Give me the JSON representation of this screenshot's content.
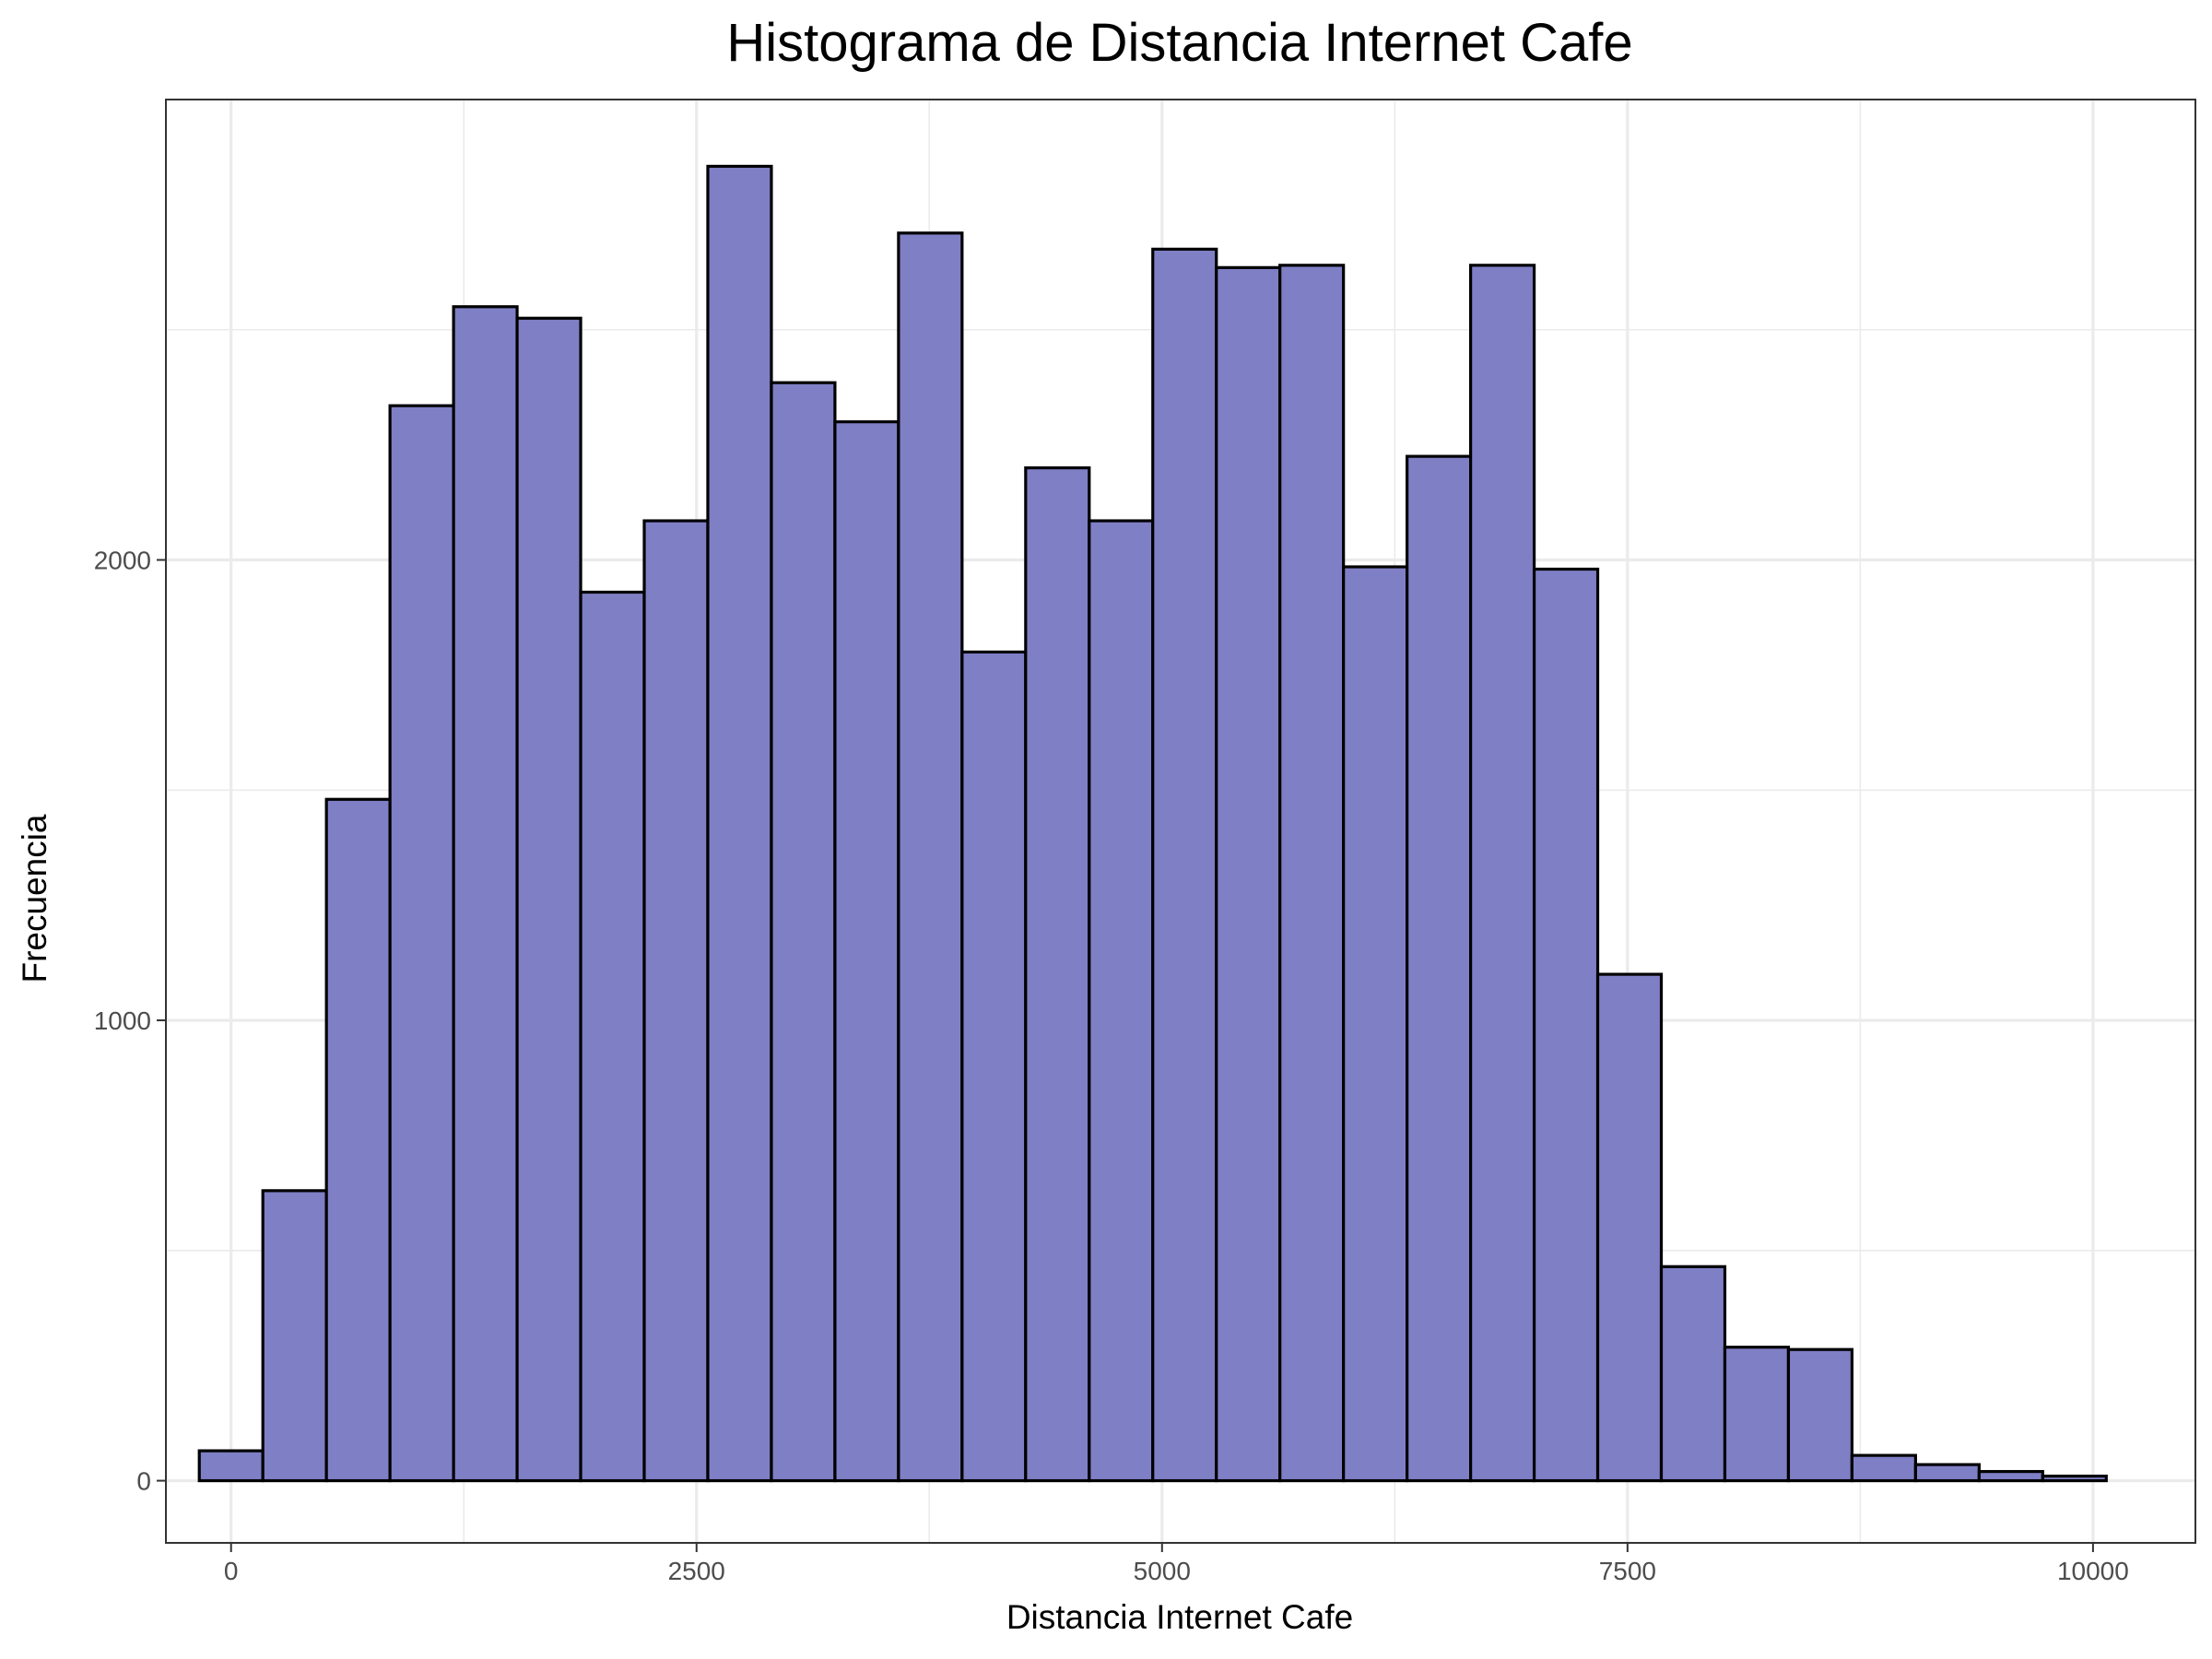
{
  "chart_data": {
    "type": "bar",
    "title": "Histograma de Distancia Internet Cafe",
    "xlabel": "Distancia Internet Cafe",
    "ylabel": "Frecuencia",
    "xlim": [
      -350,
      10550
    ],
    "ylim": [
      -135,
      3000
    ],
    "x_ticks": [
      0,
      2500,
      5000,
      7500,
      10000
    ],
    "x_tick_labels": [
      "0",
      "2500",
      "5000",
      "7500",
      "10000"
    ],
    "y_ticks": [
      0,
      1000,
      2000
    ],
    "y_tick_labels": [
      "0",
      "1000",
      "2000"
    ],
    "bin_width": 341.4,
    "bin_centers": [
      0,
      341.4,
      682.8,
      1024.2,
      1365.6,
      1707,
      2048.4,
      2389.8,
      2731.2,
      3072.6,
      3414,
      3755.4,
      4096.8,
      4438.2,
      4779.6,
      5121,
      5462.4,
      5803.8,
      6145.2,
      6486.6,
      6828,
      7169.4,
      7510.8,
      7852.2,
      8193.6,
      8535,
      8876.4,
      9217.8,
      9559.2,
      9900.6
    ],
    "values": [
      65,
      630,
      1480,
      2335,
      2550,
      2525,
      1930,
      2085,
      2855,
      2385,
      2300,
      2710,
      1800,
      2200,
      2085,
      2675,
      2635,
      2640,
      1985,
      2225,
      2640,
      1980,
      1100,
      465,
      290,
      285,
      55,
      35,
      20,
      10
    ],
    "fill_color": "#7f7fc6",
    "edge_color": "#000000",
    "grid": true,
    "legend": "none"
  }
}
